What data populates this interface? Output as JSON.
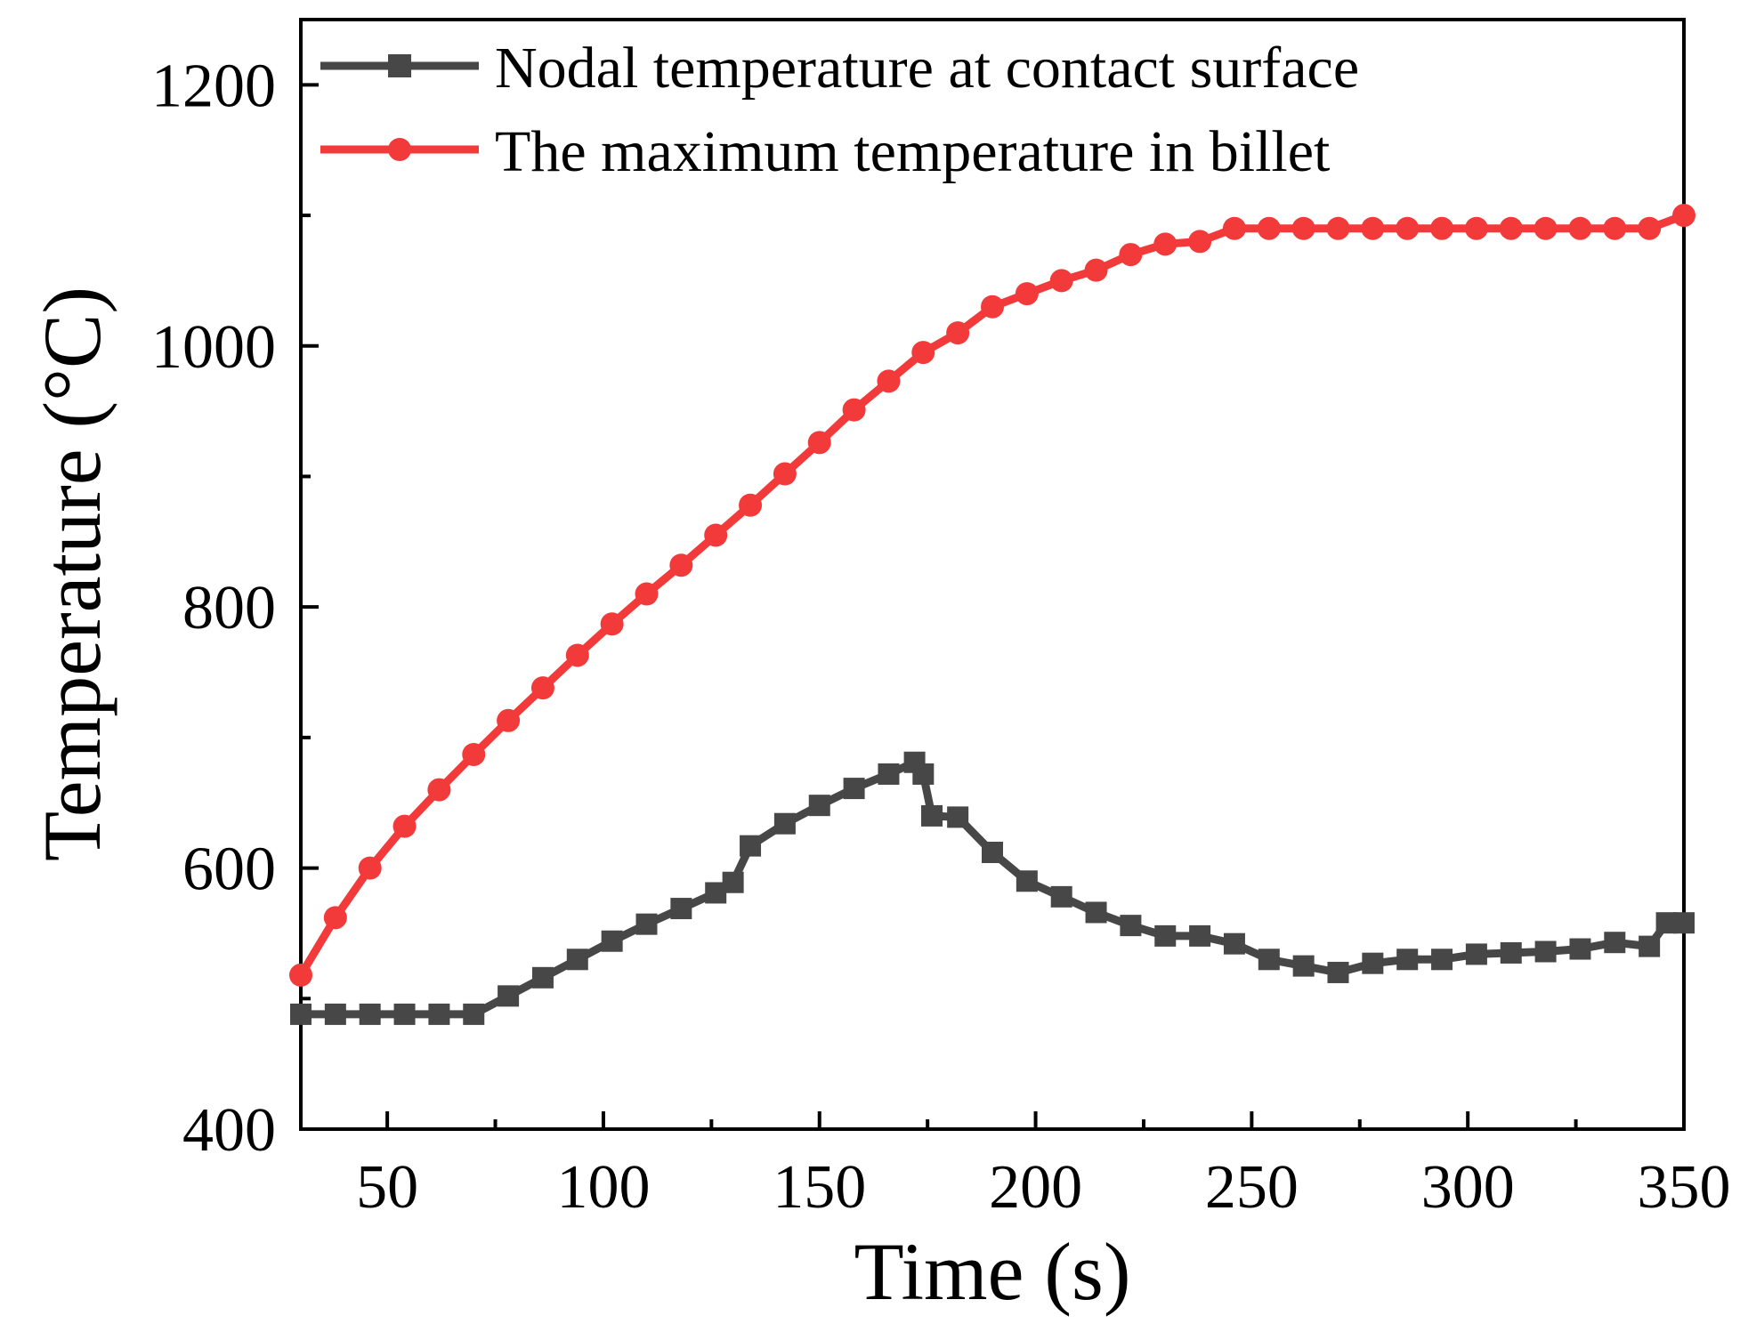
{
  "chart_data": {
    "type": "line",
    "title": "",
    "xlabel": "Time (s)",
    "ylabel": "Temperature (°C)",
    "xlim": [
      30,
      350
    ],
    "ylim": [
      400,
      1250
    ],
    "xticks": [
      50,
      100,
      150,
      200,
      250,
      300,
      350
    ],
    "yticks": [
      400,
      600,
      800,
      1000,
      1200
    ],
    "xtick_labels": [
      "50",
      "100",
      "150",
      "200",
      "250",
      "300",
      "350"
    ],
    "ytick_labels": [
      "400",
      "600",
      "800",
      "1000",
      "1200"
    ],
    "grid": false,
    "legend_position": "top-left",
    "series": [
      {
        "name": "Nodal temperature at contact surface",
        "color": "#474747",
        "marker": "square",
        "x": [
          30,
          38,
          46,
          54,
          62,
          70,
          78,
          86,
          94,
          102,
          110,
          118,
          126,
          130,
          134,
          142,
          150,
          158,
          166,
          172,
          174,
          176,
          182,
          190,
          198,
          206,
          214,
          222,
          230,
          238,
          246,
          254,
          262,
          270,
          278,
          286,
          294,
          302,
          310,
          318,
          326,
          334,
          342,
          346,
          350
        ],
        "y": [
          488,
          488,
          488,
          488,
          488,
          488,
          502,
          516,
          530,
          544,
          557,
          569,
          581,
          589,
          617,
          634,
          648,
          661,
          672,
          681,
          672,
          640,
          639,
          612,
          590,
          578,
          566,
          556,
          548,
          548,
          542,
          530,
          525,
          520,
          527,
          530,
          530,
          534,
          535,
          536,
          538,
          543,
          540,
          558,
          558
        ]
      },
      {
        "name": "The maximum temperature in billet",
        "color": "#f23a3a",
        "marker": "circle",
        "x": [
          30,
          38,
          46,
          54,
          62,
          70,
          78,
          86,
          94,
          102,
          110,
          118,
          126,
          134,
          142,
          150,
          158,
          166,
          174,
          182,
          190,
          198,
          206,
          214,
          222,
          230,
          238,
          246,
          254,
          262,
          270,
          278,
          286,
          294,
          302,
          310,
          318,
          326,
          334,
          342,
          350
        ],
        "y": [
          518,
          562,
          600,
          632,
          660,
          687,
          713,
          738,
          763,
          787,
          810,
          832,
          855,
          878,
          902,
          926,
          951,
          973,
          995,
          1010,
          1030,
          1040,
          1050,
          1058,
          1070,
          1078,
          1080,
          1090,
          1090,
          1090,
          1090,
          1090,
          1090,
          1090,
          1090,
          1090,
          1090,
          1090,
          1090,
          1090,
          1100
        ]
      }
    ]
  }
}
